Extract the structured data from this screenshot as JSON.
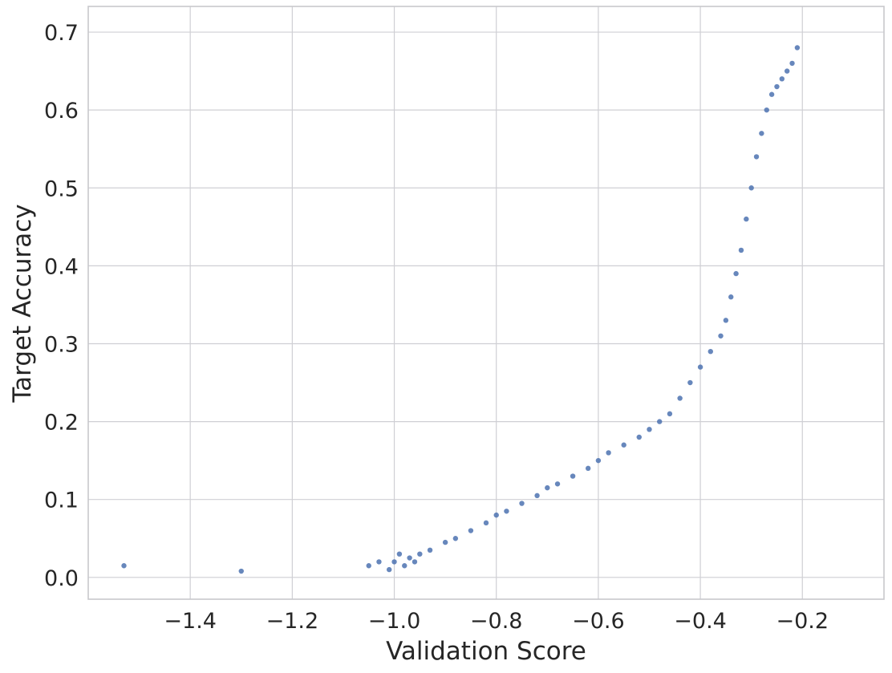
{
  "chart_data": {
    "type": "scatter",
    "title": "",
    "xlabel": "Validation Score",
    "ylabel": "Target Accuracy",
    "xlim": [
      -1.6,
      -0.04
    ],
    "ylim": [
      -0.028,
      0.733
    ],
    "grid": true,
    "x_ticks": [
      -1.4,
      -1.2,
      -1.0,
      -0.8,
      -0.6,
      -0.4,
      -0.2
    ],
    "x_tick_labels": [
      "−1.4",
      "−1.2",
      "−1.0",
      "−0.8",
      "−0.6",
      "−0.4",
      "−0.2"
    ],
    "y_ticks": [
      0.0,
      0.1,
      0.2,
      0.3,
      0.4,
      0.5,
      0.6,
      0.7
    ],
    "y_tick_labels": [
      "0.0",
      "0.1",
      "0.2",
      "0.3",
      "0.4",
      "0.5",
      "0.6",
      "0.7"
    ],
    "point_color": "#4c72b0",
    "series": [
      {
        "x": [
          -1.53,
          -1.3,
          -1.05,
          -1.03,
          -1.01,
          -1.0,
          -0.99,
          -0.98,
          -0.97,
          -0.96,
          -0.95,
          -0.93,
          -0.9,
          -0.88,
          -0.85,
          -0.82,
          -0.8,
          -0.78,
          -0.75,
          -0.72,
          -0.7,
          -0.68,
          -0.65,
          -0.62,
          -0.6,
          -0.58,
          -0.55,
          -0.52,
          -0.5,
          -0.48,
          -0.46,
          -0.44,
          -0.42,
          -0.4,
          -0.38,
          -0.36,
          -0.35,
          -0.34,
          -0.33,
          -0.32,
          -0.31,
          -0.3,
          -0.29,
          -0.28,
          -0.27,
          -0.26,
          -0.25,
          -0.24,
          -0.23,
          -0.22,
          -0.21
        ],
        "y": [
          0.015,
          0.008,
          0.015,
          0.02,
          0.01,
          0.02,
          0.03,
          0.015,
          0.025,
          0.02,
          0.03,
          0.035,
          0.045,
          0.05,
          0.06,
          0.07,
          0.08,
          0.085,
          0.095,
          0.105,
          0.115,
          0.12,
          0.13,
          0.14,
          0.15,
          0.16,
          0.17,
          0.18,
          0.19,
          0.2,
          0.21,
          0.23,
          0.25,
          0.27,
          0.29,
          0.31,
          0.33,
          0.36,
          0.39,
          0.42,
          0.46,
          0.5,
          0.54,
          0.57,
          0.6,
          0.62,
          0.63,
          0.64,
          0.65,
          0.66,
          0.68
        ]
      }
    ]
  }
}
